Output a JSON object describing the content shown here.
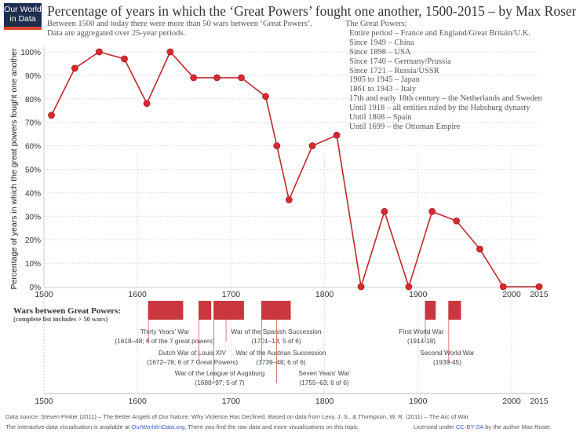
{
  "logo": {
    "line1": "Our World",
    "line2": "in Data"
  },
  "title": "Percentage of years in which the ‘Great Powers’ fought one another, 1500-2015 – by Max Roser",
  "subtitle": [
    "Between 1500 and today there were more than 50 wars between ‘Great Powers’.",
    "Data are aggregated over 25-year periods."
  ],
  "great_powers": {
    "heading": "The Great Powers:",
    "items": [
      "Entire period – France and England/Great Britain/U.K.",
      "Since 1949 – China",
      "Since 1898 – USA",
      "Since 1740 – Germany/Prussia",
      "Since 1721 – Russia/USSR",
      "1905 to 1945 – Japan",
      "1861 to 1943 – Italy",
      "17th and early 18th century – the Netherlands and Sweden",
      "Until 1918 – all entities ruled by the Habsburg dynasty",
      "Until 1808 – Spain",
      "Until 1699 – the Ottoman Empire"
    ]
  },
  "chart_data": [
    {
      "type": "line",
      "ylabel": "Percentage of years in which the great powers fought one another",
      "xlim": [
        1500,
        2015
      ],
      "ylim": [
        0,
        100
      ],
      "x_ticks": [
        "1500",
        "1600",
        "1700",
        "1800",
        "1900",
        "2000",
        "2015"
      ],
      "y_ticks": [
        "0%",
        "10%",
        "20%",
        "30%",
        "40%",
        "50%",
        "60%",
        "70%",
        "80%",
        "90%",
        "100%"
      ],
      "grid": true,
      "color": "#c0272d",
      "x": [
        1508,
        1533,
        1559,
        1586,
        1610,
        1635,
        1660,
        1685,
        1711,
        1737,
        1749,
        1762,
        1787,
        1813,
        1839,
        1864,
        1890,
        1915,
        1941,
        1966,
        1991,
        2015
      ],
      "y": [
        73,
        93,
        100,
        97,
        78,
        100,
        89,
        89,
        89,
        81,
        60,
        37,
        60,
        64.5,
        0,
        32,
        0,
        32,
        28,
        16,
        0,
        0
      ]
    },
    {
      "type": "timeline",
      "title": "Wars between Great Powers:",
      "subtitle": "(complete list includes > 50 wars)",
      "x_ticks": [
        "1500",
        "1600",
        "1700",
        "1800",
        "1900",
        "2000",
        "2015"
      ],
      "color": "#c9363e",
      "wars": [
        {
          "name": "Thirty Years’ War",
          "detail": "(1618–48; 6 of the 7 great powers)",
          "start": 1618,
          "end": 1648
        },
        {
          "name": "Dutch War of Louis XIV",
          "detail": "(1672–78; 6 of 7 Great Powers)",
          "start": 1672,
          "end": 1678
        },
        {
          "name": "War of the League of Augsburg",
          "detail": "(1688–97; 5 of 7)",
          "start": 1688,
          "end": 1697
        },
        {
          "name": "War of the Spanish Succession",
          "detail": "(1701–13; 5 of 6)",
          "start": 1701,
          "end": 1713
        },
        {
          "name": "War of the Austrian Succession",
          "detail": "(1739–48; 6 of 6)",
          "start": 1739,
          "end": 1748
        },
        {
          "name": "Seven Years’ War",
          "detail": "(1755–63; 6 of 6)",
          "start": 1755,
          "end": 1763
        },
        {
          "name": "First World War",
          "detail": "(1914-18)",
          "start": 1914,
          "end": 1918
        },
        {
          "name": "Second World War",
          "detail": "(1939-45)",
          "start": 1939,
          "end": 1945
        }
      ]
    }
  ],
  "footer": {
    "source": "Data source: Steven Pinker (2011) – The Better Angels of Our Nature: Why Violence Has Declined. Based on data from Levy, J. S., & Thompson, W. R. (2011) – The Arc of War",
    "interactive_pre": "The interactive data visualisation is available at ",
    "interactive_link": "OurWorldInData.org",
    "interactive_post": ". There you find the raw data and more visualisations on this topic.",
    "license_pre": "Licensed under ",
    "license_link": "CC-BY-SA",
    "license_post": " by the author Max Roser."
  }
}
